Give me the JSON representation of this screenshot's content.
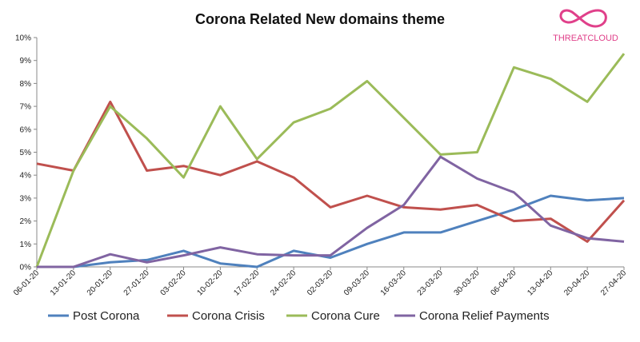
{
  "chart_data": {
    "type": "line",
    "title": "Corona Related New domains theme",
    "xlabel": "",
    "ylabel": "",
    "ylim": [
      0,
      10
    ],
    "y_ticks": [
      "0%",
      "1%",
      "2%",
      "3%",
      "4%",
      "5%",
      "6%",
      "7%",
      "8%",
      "9%",
      "10%"
    ],
    "grid": false,
    "legend_position": "bottom",
    "categories": [
      "06-01-20",
      "13-01-20",
      "20-01-20",
      "27-01-20",
      "03-02-20",
      "10-02-20",
      "17-02-20",
      "24-02-20",
      "02-03-20",
      "09-03-20",
      "16-03-20",
      "23-03-20",
      "30-03-20",
      "06-04-20",
      "13-04-20",
      "20-04-20",
      "27-04-20"
    ],
    "series": [
      {
        "name": "Post Corona",
        "color": "#4f81bd",
        "values": [
          0,
          0,
          0.2,
          0.3,
          0.7,
          0.15,
          0,
          0.7,
          0.4,
          1.0,
          1.5,
          1.5,
          2.0,
          2.5,
          3.1,
          2.9,
          3.0
        ]
      },
      {
        "name": "Corona Crisis",
        "color": "#c0504d",
        "values": [
          4.5,
          4.2,
          7.2,
          4.2,
          4.4,
          4.0,
          4.6,
          3.9,
          2.6,
          3.1,
          2.6,
          2.5,
          2.7,
          2.0,
          2.1,
          1.1,
          2.9
        ]
      },
      {
        "name": "Corona Cure",
        "color": "#9bbb59",
        "values": [
          0,
          4.2,
          7.0,
          5.6,
          3.9,
          7.0,
          4.7,
          6.3,
          6.9,
          8.1,
          6.5,
          4.9,
          5.0,
          8.7,
          8.2,
          7.2,
          9.3
        ]
      },
      {
        "name": "Corona Relief Payments",
        "color": "#8064a2",
        "values": [
          0,
          0,
          0.55,
          0.2,
          0.5,
          0.85,
          0.55,
          0.5,
          0.5,
          1.7,
          2.7,
          4.8,
          3.85,
          3.25,
          1.8,
          1.25,
          1.1
        ]
      }
    ]
  },
  "logo": {
    "text": "THREATCLOUD",
    "color": "#e0408a"
  }
}
